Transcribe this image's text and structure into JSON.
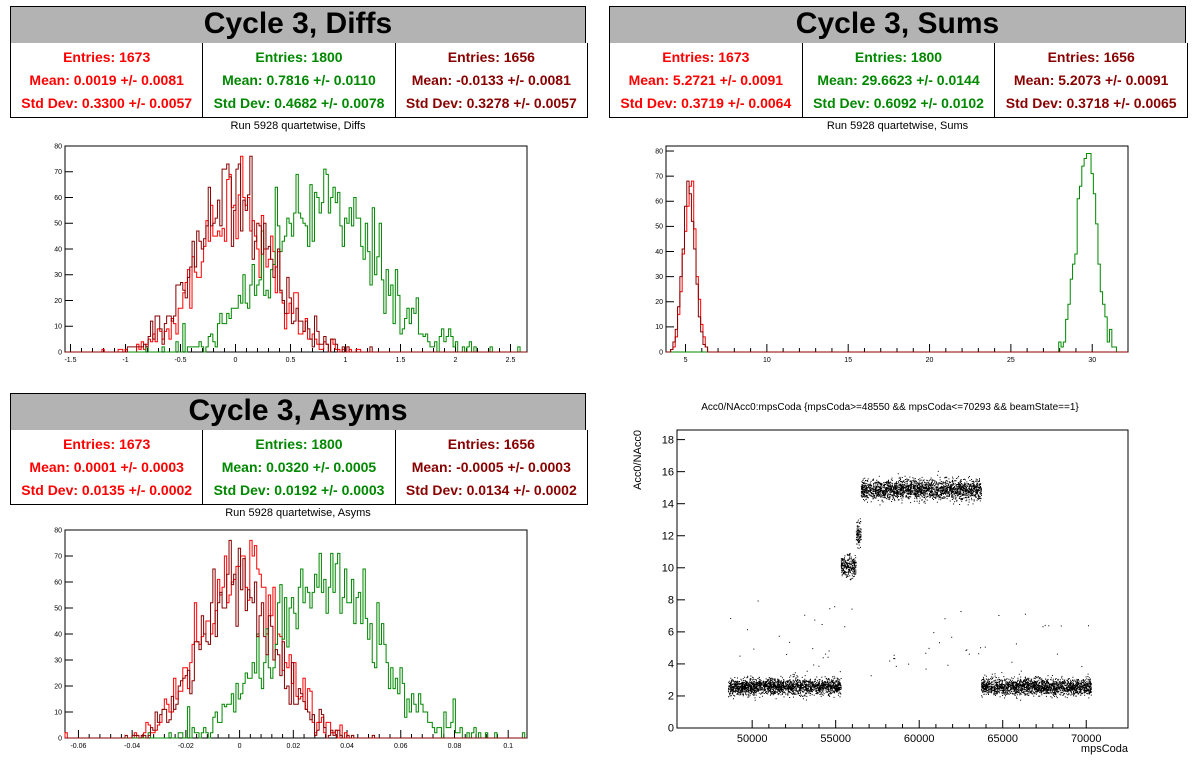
{
  "panels": [
    {
      "title": "Cycle 3, Diffs",
      "stats": [
        {
          "color": "#ff0000",
          "entries": "Entries: 1673",
          "mean": "Mean: 0.0019 +/- 0.0081",
          "std": "Std Dev: 0.3300 +/- 0.0057"
        },
        {
          "color": "#008800",
          "entries": "Entries: 1800",
          "mean": "Mean: 0.7816 +/- 0.0110",
          "std": "Std Dev: 0.4682 +/- 0.0078"
        },
        {
          "color": "#880000",
          "entries": "Entries: 1656",
          "mean": "Mean: -0.0133 +/- 0.0081",
          "std": "Std Dev: 0.3278 +/- 0.0057"
        }
      ],
      "subtitle": "Run 5928 quartetwise, Diffs"
    },
    {
      "title": "Cycle 3, Sums",
      "stats": [
        {
          "color": "#ff0000",
          "entries": "Entries: 1673",
          "mean": "Mean: 5.2721 +/- 0.0091",
          "std": "Std Dev: 0.3719 +/- 0.0064"
        },
        {
          "color": "#008800",
          "entries": "Entries: 1800",
          "mean": "Mean: 29.6623 +/- 0.0144",
          "std": "Std Dev: 0.6092 +/- 0.0102"
        },
        {
          "color": "#880000",
          "entries": "Entries: 1656",
          "mean": "Mean: 5.2073 +/- 0.0091",
          "std": "Std Dev: 0.3718 +/- 0.0065"
        }
      ],
      "subtitle": "Run 5928 quartetwise, Sums"
    },
    {
      "title": "Cycle 3, Asyms",
      "stats": [
        {
          "color": "#ff0000",
          "entries": "Entries: 1673",
          "mean": "Mean: 0.0001 +/- 0.0003",
          "std": "Std Dev: 0.0135 +/- 0.0002"
        },
        {
          "color": "#008800",
          "entries": "Entries: 1800",
          "mean": "Mean: 0.0320 +/- 0.0005",
          "std": "Std Dev: 0.0192 +/- 0.0003"
        },
        {
          "color": "#880000",
          "entries": "Entries: 1656",
          "mean": "Mean: -0.0005 +/- 0.0003",
          "std": "Std Dev: 0.0134 +/- 0.0002"
        }
      ],
      "subtitle": "Run 5928 quartetwise, Asyms"
    }
  ],
  "chart_data": [
    {
      "type": "histogram",
      "title": "Run 5928 quartetwise, Diffs",
      "xlim": [
        -1.55,
        2.65
      ],
      "ylim": [
        0,
        80
      ],
      "xticks": [
        -1.5,
        -1,
        -0.5,
        0,
        0.5,
        1,
        1.5,
        2,
        2.5
      ],
      "xtick_labels": [
        "-1.5",
        "-1",
        "-0.5",
        "0",
        "0.5",
        "1",
        "1.5",
        "2",
        "2.5"
      ],
      "yticks": [
        0,
        10,
        20,
        30,
        40,
        50,
        60,
        70,
        80
      ],
      "series": [
        {
          "color": "#ff0000",
          "mean": 0.0019,
          "std": 0.33,
          "entries": 1673
        },
        {
          "color": "#008800",
          "mean": 0.7816,
          "std": 0.4682,
          "entries": 1800
        },
        {
          "color": "#880000",
          "mean": -0.0133,
          "std": 0.3278,
          "entries": 1656
        }
      ]
    },
    {
      "type": "histogram",
      "title": "Run 5928 quartetwise, Sums",
      "xlim": [
        3.8,
        32.2
      ],
      "ylim": [
        0,
        82
      ],
      "xticks": [
        5,
        10,
        15,
        20,
        25,
        30
      ],
      "xtick_labels": [
        "5",
        "10",
        "15",
        "20",
        "25",
        "30"
      ],
      "yticks": [
        0,
        10,
        20,
        30,
        40,
        50,
        60,
        70,
        80
      ],
      "series": [
        {
          "color": "#ff0000",
          "mean": 5.2721,
          "std": 0.3719,
          "entries": 1673
        },
        {
          "color": "#008800",
          "mean": 29.6623,
          "std": 0.6092,
          "entries": 1800
        },
        {
          "color": "#880000",
          "mean": 5.2073,
          "std": 0.3718,
          "entries": 1656
        }
      ]
    },
    {
      "type": "histogram",
      "title": "Run 5928 quartetwise, Asyms",
      "xlim": [
        -0.065,
        0.107
      ],
      "ylim": [
        0,
        80
      ],
      "xticks": [
        -0.06,
        -0.04,
        -0.02,
        0,
        0.02,
        0.04,
        0.06,
        0.08,
        0.1
      ],
      "xtick_labels": [
        "-0.06",
        "-0.04",
        "-0.02",
        "0",
        "0.02",
        "0.04",
        "0.06",
        "0.08",
        "0.1"
      ],
      "yticks": [
        0,
        10,
        20,
        30,
        40,
        50,
        60,
        70,
        80
      ],
      "series": [
        {
          "color": "#ff0000",
          "mean": 0.0001,
          "std": 0.0135,
          "entries": 1673
        },
        {
          "color": "#008800",
          "mean": 0.032,
          "std": 0.0192,
          "entries": 1800
        },
        {
          "color": "#880000",
          "mean": -0.0005,
          "std": 0.0134,
          "entries": 1656
        }
      ]
    },
    {
      "type": "scatter",
      "title": "Acc0/NAcc0:mpsCoda {mpsCoda>=48550 && mpsCoda<=70293 && beamState==1}",
      "xlabel": "mpsCoda",
      "ylabel": "Acc0/NAcc0",
      "xlim": [
        45500,
        72500
      ],
      "ylim": [
        0,
        18.6
      ],
      "xticks": [
        50000,
        55000,
        60000,
        65000,
        70000
      ],
      "xtick_labels": [
        "50000",
        "55000",
        "60000",
        "65000",
        "70000"
      ],
      "yticks": [
        0,
        2,
        4,
        6,
        8,
        10,
        12,
        14,
        16,
        18
      ],
      "segments": [
        {
          "x": [
            48550,
            55300
          ],
          "y": 2.6,
          "spread": 0.45
        },
        {
          "x": [
            55300,
            56200
          ],
          "y": 10.1,
          "spread": 0.6
        },
        {
          "x": [
            56200,
            56500
          ],
          "y": 12.1,
          "spread": 0.8
        },
        {
          "x": [
            56500,
            63700
          ],
          "y": 14.9,
          "spread": 0.55
        },
        {
          "x": [
            63700,
            70293
          ],
          "y": 2.6,
          "spread": 0.45
        }
      ]
    }
  ]
}
